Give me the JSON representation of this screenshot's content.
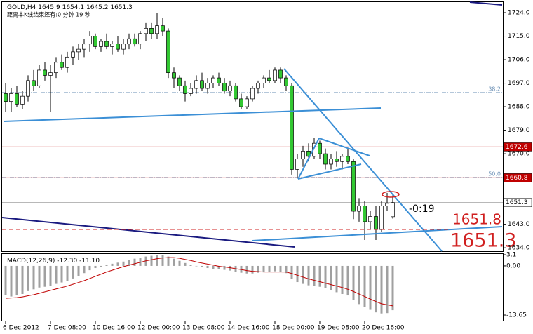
{
  "chart_data": [
    {
      "type": "candlestick",
      "title": "GOLD,H4",
      "subtitle": "距离本K线结束还有:0 分钟 19 秒",
      "categories": [
        "6 Dec 2012",
        null,
        null,
        null,
        null,
        null,
        null,
        null,
        "7 Dec 08:00",
        null,
        null,
        null,
        null,
        null,
        null,
        null,
        "10 Dec 16:00",
        null,
        null,
        null,
        null,
        null,
        null,
        null,
        "12 Dec 00:00",
        null,
        null,
        null,
        null,
        null,
        null,
        null,
        "13 Dec 08:00",
        null,
        null,
        null,
        null,
        null,
        null,
        null,
        "14 Dec 16:00",
        null,
        null,
        null,
        null,
        null,
        null,
        null,
        "18 Dec 00:00",
        null,
        null,
        null,
        null,
        null,
        null,
        null,
        "19 Dec 08:00",
        null,
        null,
        null,
        null,
        null,
        null,
        null,
        "20 Dec 16:00",
        null,
        null,
        null,
        null,
        null
      ],
      "open": [
        1693,
        1690,
        1693,
        1689,
        1692,
        1698,
        1696,
        1702,
        1700,
        1701,
        1705,
        1703,
        1707,
        1709,
        1710,
        1712,
        1715,
        1711,
        1713,
        1711,
        1712,
        1710,
        1712,
        1714,
        1712,
        1716,
        1718,
        1716,
        1719,
        1717,
        1701,
        1699,
        1696,
        1693,
        1695,
        1698,
        1695,
        1697,
        1699,
        1697,
        1694,
        1696,
        1691,
        1688,
        1691,
        1695,
        1697,
        1699,
        1698,
        1702,
        1699,
        1696,
        1664,
        1668,
        1671,
        1669,
        1674,
        1670,
        1666,
        1668,
        1667,
        1669,
        1667,
        1648,
        1650,
        1644,
        1646,
        1641,
        1650,
        1645.9
      ],
      "high": [
        1697,
        1695,
        1696,
        1694,
        1700,
        1702,
        1704,
        1705,
        1704,
        1707,
        1708,
        1709,
        1711,
        1712,
        1714,
        1717,
        1716,
        1714,
        1716,
        1713,
        1715,
        1714,
        1716,
        1716,
        1717,
        1720,
        1720,
        1724,
        1722,
        1718,
        1703,
        1700,
        1698,
        1697,
        1700,
        1701,
        1699,
        1700,
        1701,
        1699,
        1698,
        1697,
        1693,
        1692,
        1696,
        1698,
        1700,
        1702,
        1703,
        1703,
        1700,
        1697,
        1670,
        1673,
        1674,
        1676,
        1675,
        1672,
        1670,
        1671,
        1670,
        1672,
        1668,
        1653,
        1652,
        1648,
        1650,
        1652,
        1655,
        1654.1
      ],
      "low": [
        1686,
        1686,
        1688,
        1687,
        1690,
        1694,
        1695,
        1698,
        1686,
        1699,
        1702,
        1701,
        1704,
        1706,
        1707,
        1709,
        1710,
        1709,
        1710,
        1708,
        1709,
        1708,
        1710,
        1711,
        1710,
        1713,
        1714,
        1714,
        1715,
        1699,
        1695,
        1694,
        1690,
        1692,
        1693,
        1694,
        1693,
        1695,
        1696,
        1693,
        1692,
        1690,
        1687,
        1687,
        1690,
        1693,
        1695,
        1697,
        1697,
        1697,
        1694,
        1662,
        1661,
        1665,
        1667,
        1668,
        1668,
        1664,
        1664,
        1665,
        1664,
        1666,
        1645,
        1644,
        1637,
        1641,
        1637,
        1640,
        1648,
        1645.2
      ],
      "close": [
        1690,
        1693,
        1689,
        1692,
        1698,
        1696,
        1702,
        1700,
        1701,
        1705,
        1703,
        1707,
        1709,
        1710,
        1712,
        1715,
        1711,
        1713,
        1711,
        1712,
        1710,
        1712,
        1714,
        1712,
        1716,
        1718,
        1716,
        1719,
        1717,
        1701,
        1699,
        1696,
        1693,
        1695,
        1698,
        1695,
        1697,
        1699,
        1697,
        1694,
        1696,
        1691,
        1688,
        1691,
        1695,
        1697,
        1699,
        1698,
        1702,
        1699,
        1696,
        1664,
        1668,
        1671,
        1669,
        1674,
        1670,
        1666,
        1668,
        1667,
        1669,
        1667,
        1648,
        1650,
        1644,
        1646,
        1641,
        1650,
        1651,
        1651.3
      ],
      "up_color": "#ffffff",
      "down_color": "#32c832",
      "wick_color": "#000000",
      "ylim": [
        1632.7,
        1728.3
      ],
      "yticks": [
        {
          "value": 1724,
          "label": "1724.0"
        },
        {
          "value": 1715,
          "label": "1715.0"
        },
        {
          "value": 1706,
          "label": "1706.0"
        },
        {
          "value": 1697,
          "label": "1697.0"
        },
        {
          "value": 1688,
          "label": "1688.0"
        },
        {
          "value": 1679,
          "label": "1679.0"
        },
        {
          "value": 1670,
          "label": "1670.0"
        },
        {
          "value": 1643,
          "label": "1643.0"
        },
        {
          "value": 1634,
          "label": "1634.0"
        }
      ],
      "levels": [
        {
          "value": 1672.6,
          "color": "#c00000",
          "tag_fill": "#c00000",
          "tag_text": "#ffffff"
        },
        {
          "value": 1660.8,
          "color": "#c00000",
          "tag_fill": "#c00000",
          "tag_text": "#ffffff"
        },
        {
          "value": 1651.3,
          "color": "#a0a0a0",
          "tag_fill": "#ffffff",
          "tag_text": "#000000"
        }
      ],
      "fib_levels": [
        {
          "value": 1693.4,
          "label": "38.2"
        },
        {
          "value": 1660.9,
          "label": "50.0"
        }
      ],
      "annotations": [
        "-0:19",
        "1651.8",
        "1651.3"
      ]
    },
    {
      "type": "macd",
      "title": "MACD(12,26,9)",
      "current": [
        {
          "value": -12.3,
          "label": "-12.30"
        },
        {
          "value": -11.1,
          "label": "-11.10"
        }
      ],
      "series": [
        {
          "color": "#a0a0a0",
          "values": [
            -8,
            -8.5,
            -8.2,
            -7.8,
            -7,
            -6.5,
            -6,
            -5.8,
            -5.5,
            -5,
            -4.6,
            -4.2,
            -3.5,
            -2.8,
            -2,
            -1.2,
            -0.6,
            -0.2,
            0.3,
            0.6,
            0.9,
            1.2,
            1.6,
            2,
            2.3,
            2.6,
            2.8,
            3,
            3.1,
            2.6,
            2,
            1.4,
            0.8,
            0.3,
            -0.1,
            -0.4,
            -0.6,
            -0.8,
            -0.9,
            -1.1,
            -1.3,
            -1.6,
            -1.9,
            -2.1,
            -2.1,
            -1.9,
            -1.7,
            -1.6,
            -1.5,
            -1.6,
            -2,
            -3.6,
            -4.5,
            -5,
            -5.4,
            -5.5,
            -5.8,
            -6.2,
            -6.8,
            -7.3,
            -7.8,
            -8.2,
            -9.5,
            -10.6,
            -11.5,
            -12.2,
            -12.9,
            -13.2,
            -13.1,
            -12.3
          ]
        },
        {
          "color": "#c00000",
          "values": [
            -9,
            -8.9,
            -8.8,
            -8.6,
            -8.3,
            -8,
            -7.6,
            -7.2,
            -6.8,
            -6.4,
            -6,
            -5.6,
            -5.1,
            -4.6,
            -4.1,
            -3.5,
            -2.9,
            -2.3,
            -1.7,
            -1.2,
            -0.7,
            -0.2,
            0.2,
            0.6,
            1,
            1.4,
            1.7,
            2,
            2.2,
            2.3,
            2.3,
            2.1,
            1.8,
            1.5,
            1.1,
            0.8,
            0.5,
            0.2,
            -0.1,
            -0.3,
            -0.5,
            -0.8,
            -1,
            -1.3,
            -1.5,
            -1.6,
            -1.7,
            -1.7,
            -1.7,
            -1.7,
            -1.7,
            -2.1,
            -2.6,
            -3.1,
            -3.6,
            -4,
            -4.4,
            -4.8,
            -5.2,
            -5.6,
            -6,
            -6.5,
            -7.1,
            -7.8,
            -8.5,
            -9.2,
            -9.9,
            -10.5,
            -10.8,
            -11.1
          ]
        }
      ],
      "ylim": [
        -15.4,
        3.3
      ],
      "yticks": [
        3.1,
        {
          "value": 0,
          "label": "0.00"
        },
        -13.65
      ]
    }
  ]
}
